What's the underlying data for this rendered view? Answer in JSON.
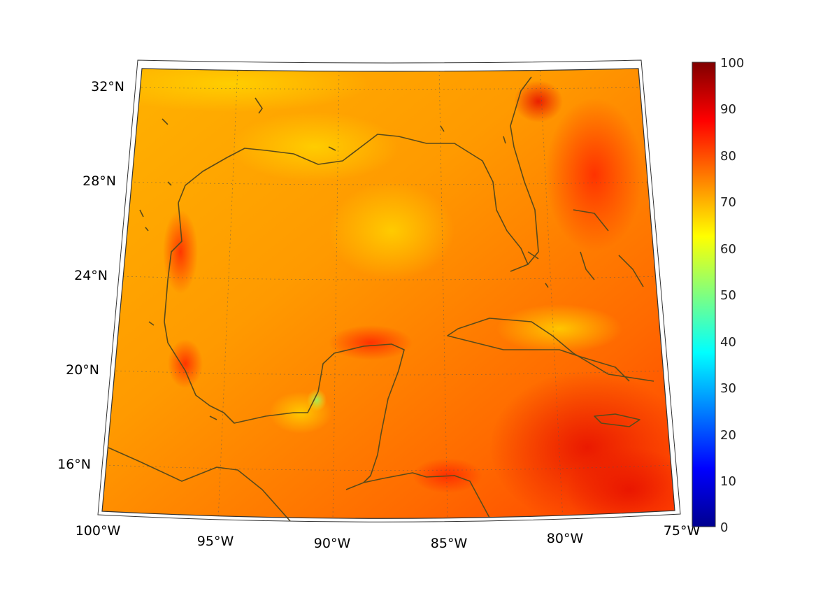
{
  "map": {
    "lat_labels": [
      "32°N",
      "28°N",
      "24°N",
      "20°N",
      "16°N"
    ],
    "lon_labels": [
      "100°W",
      "95°W",
      "90°W",
      "85°W",
      "80°W",
      "75°W"
    ],
    "extent": {
      "lon_min": -100,
      "lon_max": -75,
      "lat_min": 14,
      "lat_max": 33
    },
    "projection": "conic",
    "grid": "dotted",
    "coastline_color": "#5a4a1a"
  },
  "colorbar": {
    "ticks": [
      "0",
      "10",
      "20",
      "30",
      "40",
      "50",
      "60",
      "70",
      "80",
      "90",
      "100"
    ],
    "range": [
      0,
      100
    ],
    "colormap": "jet"
  },
  "field": {
    "dominant_range": [
      65,
      85
    ],
    "high_regions": [
      "Caribbean Sea south of Jamaica",
      "Atlantic off north Florida",
      "Bay of Campeche coast"
    ],
    "low_regions": [
      "west coast of Yucatan near Campeche",
      "northern Gulf coast"
    ]
  }
}
